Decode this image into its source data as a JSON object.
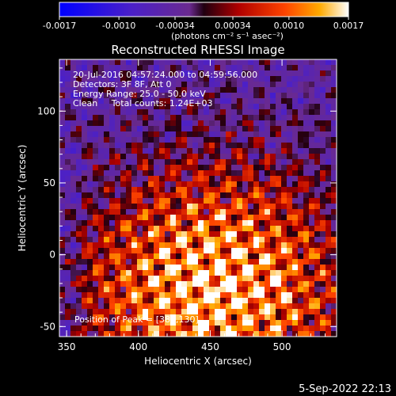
{
  "chart_data": {
    "type": "heatmap",
    "title": "Reconstructed RHESSI Image",
    "xlabel": "Heliocentric X (arcsec)",
    "ylabel": "Heliocentric Y (arcsec)",
    "xlim": [
      345,
      538
    ],
    "ylim": [
      -57,
      136
    ],
    "xticks": [
      "350",
      "400",
      "450",
      "500"
    ],
    "yticks": [
      "100",
      "50",
      "0",
      "-50"
    ],
    "colorbar": {
      "label": "(photons cm⁻² s⁻¹ asec⁻²)",
      "min": -0.0017,
      "max": 0.0017,
      "ticks": [
        "-0.0017",
        "-0.0010",
        "-0.00034",
        "0.00034",
        "0.0010",
        "0.0017"
      ]
    },
    "annotations": [
      "20-Jul-2016 04:57:24.000 to 04:59:56.000",
      "Detectors: 3F 8F, Att 0",
      "Energy Range: 25.0 - 50.0 keV",
      "Clean     Total counts: 1.24E+03"
    ],
    "peak_label": "Position of Peak = [383,130]",
    "peak_position": [
      383,
      130
    ],
    "footer_date": "5-Sep-2022 22:13"
  }
}
